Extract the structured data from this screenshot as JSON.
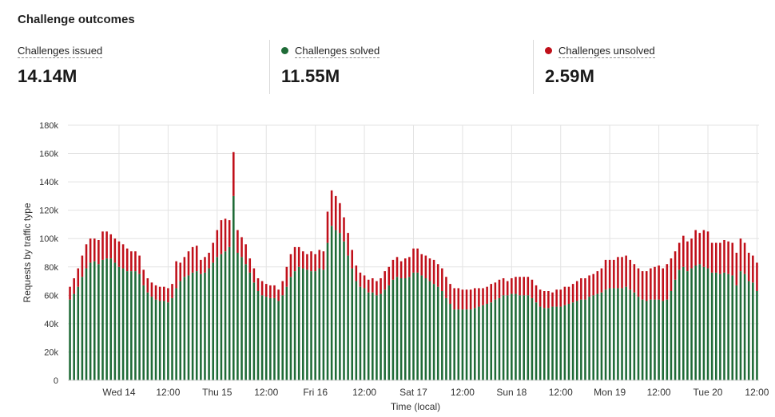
{
  "title": "Challenge outcomes",
  "stats": [
    {
      "label": "Challenges issued",
      "value": "14.14M",
      "color": ""
    },
    {
      "label": "Challenges solved",
      "value": "11.55M",
      "color": "#1f6b37"
    },
    {
      "label": "Challenges unsolved",
      "value": "2.59M",
      "color": "#c0101a"
    }
  ],
  "chart_data": {
    "type": "bar",
    "stacked": true,
    "xlabel": "Time (local)",
    "ylabel": "Requests by traffic type",
    "ylim": [
      0,
      180000
    ],
    "y_ticks": [
      0,
      20000,
      40000,
      60000,
      80000,
      100000,
      120000,
      140000,
      160000,
      180000
    ],
    "y_tick_labels": [
      "0",
      "20k",
      "40k",
      "60k",
      "80k",
      "100k",
      "120k",
      "140k",
      "160k",
      "180k"
    ],
    "x_tick_labels": [
      "Wed 14",
      "12:00",
      "Thu 15",
      "12:00",
      "Fri 16",
      "12:00",
      "Sat 17",
      "12:00",
      "Sun 18",
      "12:00",
      "Mon 19",
      "12:00",
      "Tue 20",
      "12:00"
    ],
    "x_tick_index": [
      12,
      24,
      36,
      48,
      60,
      72,
      84,
      96,
      108,
      120,
      132,
      144,
      156,
      168
    ],
    "series": [
      {
        "name": "Challenges solved",
        "color": "#1f6b37",
        "values": [
          57000,
          61000,
          66000,
          73000,
          79000,
          83000,
          84000,
          82000,
          85000,
          86000,
          86000,
          83000,
          80000,
          79000,
          77000,
          77000,
          77000,
          75000,
          67000,
          62000,
          59000,
          57000,
          56000,
          56000,
          55000,
          58000,
          65000,
          70000,
          73000,
          74000,
          76000,
          77000,
          75000,
          76000,
          79000,
          83000,
          87000,
          89000,
          91000,
          94000,
          130000,
          90000,
          87000,
          82000,
          76000,
          69000,
          63000,
          60000,
          59000,
          58000,
          58000,
          56000,
          60000,
          66000,
          73000,
          77000,
          80000,
          79000,
          78000,
          77000,
          77000,
          79000,
          78000,
          97000,
          109000,
          106000,
          104000,
          98000,
          88000,
          79000,
          70000,
          66000,
          65000,
          62000,
          62000,
          60000,
          61000,
          64000,
          67000,
          71000,
          73000,
          72000,
          72000,
          73000,
          76000,
          76000,
          74000,
          72000,
          70000,
          68000,
          66000,
          63000,
          58000,
          54000,
          50000,
          50000,
          50000,
          50000,
          50000,
          51000,
          52000,
          53000,
          54000,
          55000,
          57000,
          58000,
          60000,
          60000,
          61000,
          61000,
          60000,
          60000,
          60000,
          58000,
          55000,
          52000,
          51000,
          51000,
          52000,
          52000,
          52000,
          53000,
          54000,
          55000,
          56000,
          57000,
          57000,
          59000,
          60000,
          61000,
          62000,
          64000,
          65000,
          65000,
          65000,
          65000,
          66000,
          64000,
          62000,
          59000,
          57000,
          56000,
          57000,
          57000,
          57000,
          56000,
          57000,
          63000,
          71000,
          78000,
          80000,
          77000,
          79000,
          81000,
          82000,
          80000,
          79000,
          76000,
          76000,
          75000,
          76000,
          75000,
          74000,
          67000,
          77000,
          75000,
          70000,
          69000,
          63000
        ]
      },
      {
        "name": "Challenges unsolved",
        "color": "#c0101a",
        "values": [
          9000,
          11000,
          13000,
          15000,
          17000,
          17000,
          16000,
          17000,
          20000,
          19000,
          17000,
          17000,
          18000,
          17000,
          16000,
          14000,
          14000,
          13000,
          11000,
          10000,
          10000,
          10000,
          10000,
          10000,
          10000,
          10000,
          19000,
          13000,
          14000,
          17000,
          18000,
          18000,
          10000,
          11000,
          11000,
          14000,
          19000,
          24000,
          23000,
          19000,
          31000,
          16000,
          14000,
          14000,
          10000,
          10000,
          9000,
          10000,
          9000,
          9000,
          9000,
          8000,
          10000,
          14000,
          16000,
          17000,
          14000,
          12000,
          11000,
          14000,
          12000,
          13000,
          13000,
          22000,
          25000,
          24000,
          21000,
          17000,
          16000,
          13000,
          11000,
          10000,
          9000,
          9000,
          10000,
          10000,
          11000,
          13000,
          13000,
          14000,
          14000,
          12000,
          14000,
          14000,
          17000,
          17000,
          15000,
          16000,
          16000,
          17000,
          16000,
          16000,
          15000,
          14000,
          15000,
          15000,
          14000,
          14000,
          14000,
          14000,
          13000,
          12000,
          12000,
          13000,
          12000,
          13000,
          12000,
          10000,
          11000,
          12000,
          13000,
          13000,
          13000,
          13000,
          12000,
          12000,
          12000,
          12000,
          10000,
          12000,
          12000,
          13000,
          12000,
          13000,
          14000,
          15000,
          15000,
          15000,
          15000,
          16000,
          17000,
          21000,
          20000,
          20000,
          22000,
          22000,
          22000,
          21000,
          20000,
          20000,
          20000,
          21000,
          22000,
          23000,
          24000,
          23000,
          25000,
          23000,
          20000,
          19000,
          22000,
          21000,
          21000,
          25000,
          22000,
          26000,
          26000,
          21000,
          21000,
          22000,
          23000,
          23000,
          23000,
          23000,
          23000,
          22000,
          20000,
          19000,
          20000,
          17000,
          17000
        ]
      }
    ]
  }
}
